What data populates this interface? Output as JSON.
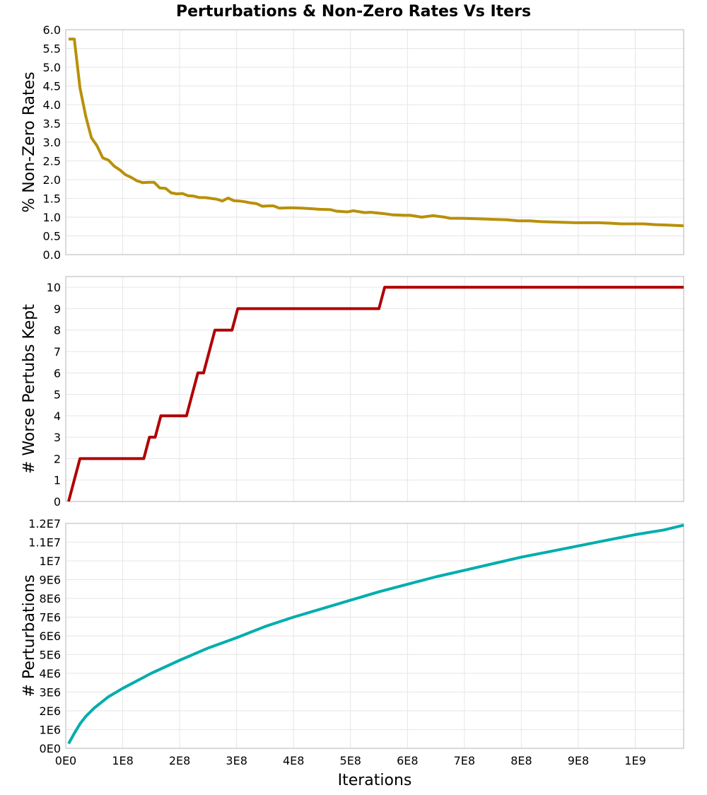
{
  "chart_data": {
    "title": "Perturbations & Non-Zero Rates Vs Iters",
    "xlabel": "Iterations",
    "x_tick_labels": [
      "0E0",
      "1E8",
      "2E8",
      "3E8",
      "4E8",
      "5E8",
      "6E8",
      "7E8",
      "8E8",
      "9E8",
      "1E9"
    ],
    "xlim": [
      0,
      1085000000
    ],
    "grid": true,
    "panels": [
      {
        "type": "line",
        "ylabel": "% Non-Zero Rates",
        "ylim": [
          0,
          6.0
        ],
        "y_ticks": [
          0,
          0.5,
          1.0,
          1.5,
          2.0,
          2.5,
          3.0,
          3.5,
          4.0,
          4.5,
          5.0,
          5.5,
          6.0
        ],
        "y_tick_labels": [
          "0.0",
          "0.5",
          "1.0",
          "1.5",
          "2.0",
          "2.5",
          "3.0",
          "3.5",
          "4.0",
          "4.5",
          "5.0",
          "5.5",
          "6.0"
        ],
        "color": "#b8900a",
        "series": [
          {
            "x": [
              5000000,
              15000000,
              25000000,
              35000000,
              45000000,
              55000000,
              65000000,
              75000000,
              85000000,
              95000000,
              105000000,
              115000000,
              125000000,
              135000000,
              145000000,
              155000000,
              165000000,
              175000000,
              185000000,
              195000000,
              205000000,
              215000000,
              225000000,
              235000000,
              245000000,
              255000000,
              265000000,
              275000000,
              285000000,
              295000000,
              305000000,
              315000000,
              325000000,
              335000000,
              345000000,
              355000000,
              365000000,
              375000000,
              395000000,
              415000000,
              435000000,
              445000000,
              465000000,
              475000000,
              495000000,
              505000000,
              525000000,
              535000000,
              555000000,
              575000000,
              595000000,
              605000000,
              625000000,
              645000000,
              665000000,
              675000000,
              695000000,
              715000000,
              735000000,
              755000000,
              775000000,
              795000000,
              815000000,
              835000000,
              855000000,
              875000000,
              895000000,
              915000000,
              935000000,
              955000000,
              975000000,
              995000000,
              1015000000,
              1035000000,
              1055000000,
              1085000000
            ],
            "y": [
              5.75,
              5.75,
              4.45,
              3.7,
              3.12,
              2.9,
              2.58,
              2.52,
              2.36,
              2.26,
              2.13,
              2.06,
              1.97,
              1.92,
              1.93,
              1.93,
              1.78,
              1.77,
              1.65,
              1.62,
              1.63,
              1.57,
              1.56,
              1.52,
              1.52,
              1.5,
              1.48,
              1.43,
              1.51,
              1.44,
              1.43,
              1.41,
              1.38,
              1.36,
              1.29,
              1.3,
              1.3,
              1.24,
              1.25,
              1.24,
              1.22,
              1.21,
              1.2,
              1.16,
              1.14,
              1.17,
              1.12,
              1.13,
              1.1,
              1.06,
              1.05,
              1.05,
              1.0,
              1.04,
              1.0,
              0.97,
              0.97,
              0.96,
              0.95,
              0.94,
              0.93,
              0.9,
              0.9,
              0.88,
              0.87,
              0.86,
              0.85,
              0.85,
              0.85,
              0.84,
              0.82,
              0.82,
              0.82,
              0.8,
              0.79,
              0.77
            ]
          }
        ]
      },
      {
        "type": "line",
        "ylabel": "# Worse Pertubs Kept",
        "ylim": [
          0,
          10.5
        ],
        "y_ticks": [
          0,
          1,
          2,
          3,
          4,
          5,
          6,
          7,
          8,
          9,
          10
        ],
        "y_tick_labels": [
          "0",
          "1",
          "2",
          "3",
          "4",
          "5",
          "6",
          "7",
          "8",
          "9",
          "10"
        ],
        "color": "#b00000",
        "series": [
          {
            "x": [
              5000000,
              25000000,
              137000000,
              147000000,
              157000000,
              167000000,
              212000000,
              222000000,
              232000000,
              242000000,
              262000000,
              272000000,
              292000000,
              302000000,
              550000000,
              560000000,
              1085000000
            ],
            "y": [
              0,
              2,
              2,
              3,
              3,
              4,
              4,
              5,
              6,
              6,
              8,
              8,
              8,
              9,
              9,
              10,
              10
            ]
          }
        ]
      },
      {
        "type": "line",
        "ylabel": "# Perturbations",
        "ylim": [
          0,
          12000000
        ],
        "y_ticks": [
          0,
          1000000,
          2000000,
          3000000,
          4000000,
          5000000,
          6000000,
          7000000,
          8000000,
          9000000,
          10000000,
          11000000,
          12000000
        ],
        "y_tick_labels": [
          "0E0",
          "1E6",
          "2E6",
          "3E6",
          "4E6",
          "5E6",
          "6E6",
          "7E6",
          "8E6",
          "9E6",
          "1E7",
          "1.1E7",
          "1.2E7"
        ],
        "color": "#00adad",
        "series": [
          {
            "x": [
              5000000,
              15000000,
              25000000,
              35000000,
              50000000,
              75000000,
              100000000,
              150000000,
              200000000,
              250000000,
              300000000,
              350000000,
              400000000,
              450000000,
              500000000,
              550000000,
              600000000,
              650000000,
              700000000,
              750000000,
              800000000,
              850000000,
              900000000,
              950000000,
              1000000000,
              1050000000,
              1085000000
            ],
            "y": [
              250000,
              800000,
              1300000,
              1700000,
              2150000,
              2750000,
              3200000,
              4000000,
              4700000,
              5350000,
              5900000,
              6500000,
              7000000,
              7450000,
              7900000,
              8350000,
              8750000,
              9150000,
              9500000,
              9850000,
              10200000,
              10500000,
              10800000,
              11100000,
              11400000,
              11650000,
              11900000
            ]
          }
        ]
      }
    ]
  }
}
